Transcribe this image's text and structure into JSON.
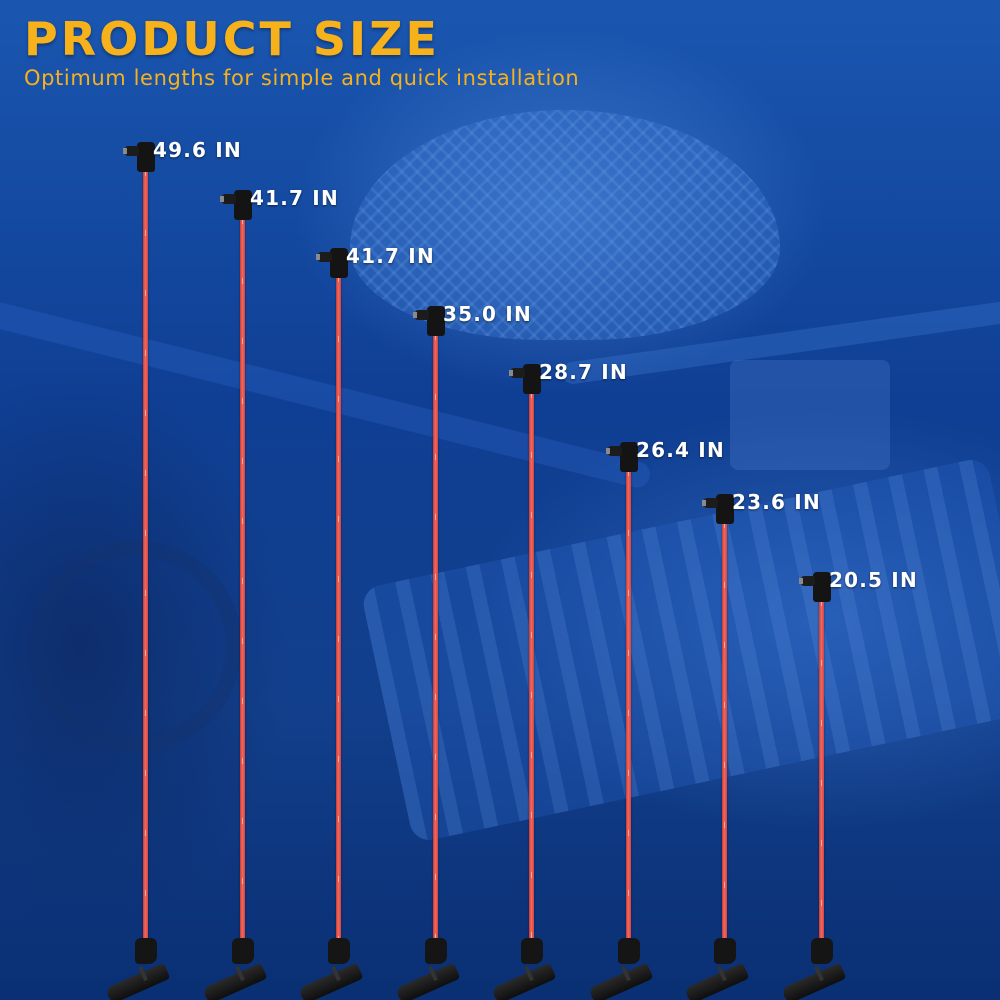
{
  "header": {
    "title": "PRODUCT SIZE",
    "subtitle": "Optimum lengths for simple and quick installation"
  },
  "colors": {
    "accent": "#f7b21b",
    "wire": "#e5524c",
    "boot": "#141414",
    "label": "#ffffff",
    "background": "#0f3f94"
  },
  "icons": {
    "top_boot": "coil-boot-icon",
    "bottom_boot": "spark-plug-boot-icon"
  },
  "cables": [
    {
      "label": "49.6 IN",
      "length_in": 49.6
    },
    {
      "label": "41.7 IN",
      "length_in": 41.7
    },
    {
      "label": "41.7 IN",
      "length_in": 41.7
    },
    {
      "label": "35.0 IN",
      "length_in": 35.0
    },
    {
      "label": "28.7 IN",
      "length_in": 28.7
    },
    {
      "label": "26.4 IN",
      "length_in": 26.4
    },
    {
      "label": "23.6 IN",
      "length_in": 23.6
    },
    {
      "label": "20.5 IN",
      "length_in": 20.5
    }
  ]
}
